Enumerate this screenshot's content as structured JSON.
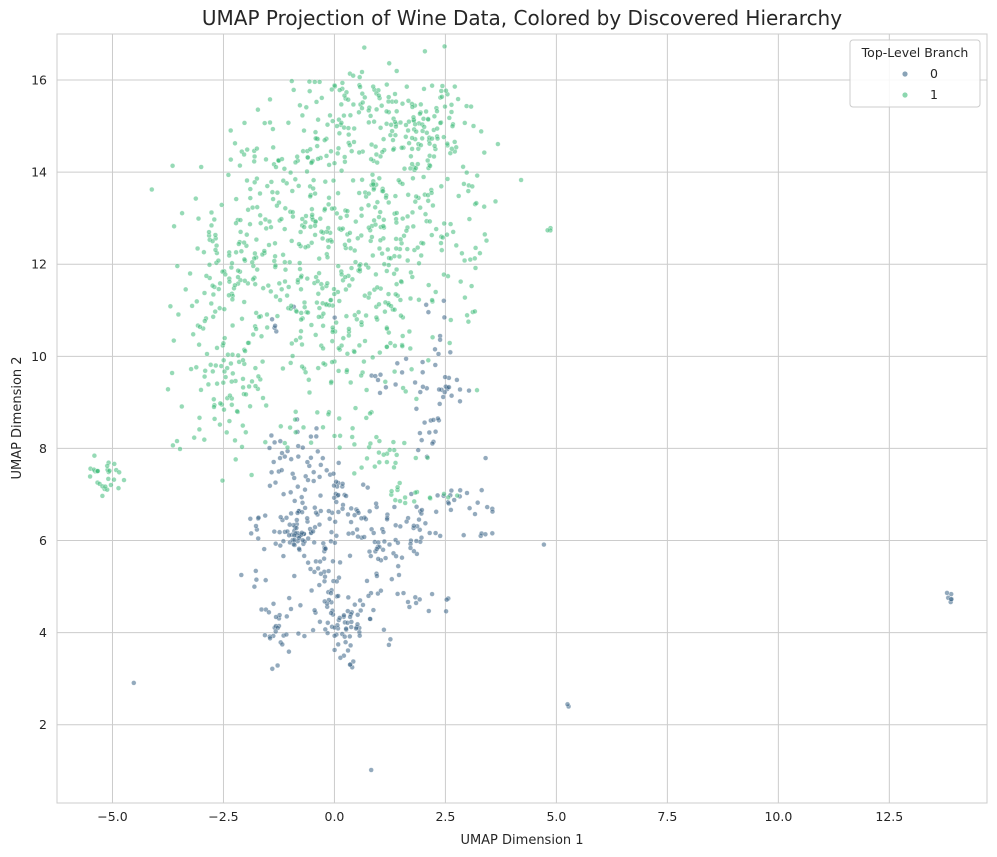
{
  "chart_data": {
    "type": "scatter",
    "title": "UMAP Projection of Wine Data, Colored by Discovered Hierarchy",
    "xlabel": "UMAP Dimension 1",
    "ylabel": "UMAP Dimension 2",
    "xlim": [
      -6.25,
      14.7
    ],
    "ylim": [
      0.3,
      17.0
    ],
    "xticks": [
      -5.0,
      -2.5,
      0.0,
      2.5,
      5.0,
      7.5,
      10.0,
      12.5
    ],
    "xtick_labels": [
      "−5.0",
      "−2.5",
      "0.0",
      "2.5",
      "5.0",
      "7.5",
      "10.0",
      "12.5"
    ],
    "yticks": [
      2,
      4,
      6,
      8,
      10,
      12,
      14,
      16
    ],
    "ytick_labels": [
      "2",
      "4",
      "6",
      "8",
      "10",
      "12",
      "14",
      "16"
    ],
    "grid": true,
    "legend": {
      "title": "Top-Level Branch",
      "position": "top-right",
      "entries": [
        "0",
        "1"
      ]
    },
    "series": [
      {
        "name": "0",
        "color": "#3b6587",
        "clusters": [
          {
            "cx": -0.8,
            "cy": 6.1,
            "sx": 0.25,
            "sy": 0.2,
            "n": 50
          },
          {
            "cx": -0.6,
            "cy": 7.4,
            "sx": 0.45,
            "sy": 0.5,
            "n": 45
          },
          {
            "cx": 0.5,
            "cy": 6.5,
            "sx": 0.5,
            "sy": 0.45,
            "n": 55
          },
          {
            "cx": 0.4,
            "cy": 4.4,
            "sx": 0.35,
            "sy": 0.35,
            "n": 45
          },
          {
            "cx": 0.2,
            "cy": 3.8,
            "sx": 0.2,
            "sy": 0.3,
            "n": 15
          },
          {
            "cx": -0.8,
            "cy": 5.0,
            "sx": 0.6,
            "sy": 0.6,
            "n": 35
          },
          {
            "cx": -1.3,
            "cy": 4.1,
            "sx": 0.15,
            "sy": 0.3,
            "n": 18
          },
          {
            "cx": 1.2,
            "cy": 5.6,
            "sx": 0.35,
            "sy": 0.5,
            "n": 30
          },
          {
            "cx": 1.9,
            "cy": 6.2,
            "sx": 0.4,
            "sy": 0.3,
            "n": 22
          },
          {
            "cx": -1.6,
            "cy": 6.2,
            "sx": 0.15,
            "sy": 0.3,
            "n": 12
          },
          {
            "cx": -1.2,
            "cy": 7.9,
            "sx": 0.35,
            "sy": 0.25,
            "n": 14
          },
          {
            "cx": 2.2,
            "cy": 8.3,
            "sx": 0.15,
            "sy": 0.25,
            "n": 14
          },
          {
            "cx": 2.7,
            "cy": 9.3,
            "sx": 0.15,
            "sy": 0.15,
            "n": 14
          },
          {
            "cx": 1.6,
            "cy": 9.5,
            "sx": 0.5,
            "sy": 0.25,
            "n": 18
          },
          {
            "cx": 2.7,
            "cy": 7.0,
            "sx": 0.25,
            "sy": 0.15,
            "n": 12
          },
          {
            "cx": 1.7,
            "cy": 4.9,
            "sx": 0.3,
            "sy": 0.3,
            "n": 10
          },
          {
            "cx": 2.4,
            "cy": 10.5,
            "sx": 0.2,
            "sy": 0.5,
            "n": 10
          },
          {
            "cx": -0.3,
            "cy": 5.6,
            "sx": 0.3,
            "sy": 0.4,
            "n": 15
          },
          {
            "cx": 3.3,
            "cy": 6.8,
            "sx": 0.2,
            "sy": 0.5,
            "n": 8
          },
          {
            "cx": 3.3,
            "cy": 6.1,
            "sx": 0.2,
            "sy": 0.1,
            "n": 4
          },
          {
            "cx": -1.1,
            "cy": 10.7,
            "sx": 0.5,
            "sy": 0.2,
            "n": 6
          },
          {
            "cx": 13.85,
            "cy": 4.75,
            "sx": 0.08,
            "sy": 0.06,
            "n": 6
          },
          {
            "cx": 5.25,
            "cy": 2.42,
            "sx": 0.03,
            "sy": 0.03,
            "n": 2
          },
          {
            "cx": 4.7,
            "cy": 5.95,
            "sx": 0.02,
            "sy": 0.02,
            "n": 1
          },
          {
            "cx": -4.5,
            "cy": 2.87,
            "sx": 0.02,
            "sy": 0.02,
            "n": 1
          },
          {
            "cx": 0.8,
            "cy": 1.05,
            "sx": 0.02,
            "sy": 0.02,
            "n": 1
          },
          {
            "cx": -1.4,
            "cy": 3.22,
            "sx": 0.02,
            "sy": 0.02,
            "n": 1
          },
          {
            "cx": 2.6,
            "cy": 4.6,
            "sx": 0.1,
            "sy": 0.1,
            "n": 3
          },
          {
            "cx": 0.4,
            "cy": 3.3,
            "sx": 0.05,
            "sy": 0.05,
            "n": 3
          }
        ]
      },
      {
        "name": "1",
        "color": "#3fbc7a",
        "clusters": [
          {
            "cx": 0.8,
            "cy": 14.8,
            "sx": 1.1,
            "sy": 0.75,
            "n": 180
          },
          {
            "cx": -0.8,
            "cy": 12.4,
            "sx": 1.2,
            "sy": 1.1,
            "n": 260
          },
          {
            "cx": 1.6,
            "cy": 12.7,
            "sx": 0.8,
            "sy": 0.8,
            "n": 110
          },
          {
            "cx": 0.6,
            "cy": 10.6,
            "sx": 0.9,
            "sy": 0.9,
            "n": 110
          },
          {
            "cx": -2.4,
            "cy": 9.5,
            "sx": 0.45,
            "sy": 0.8,
            "n": 80
          },
          {
            "cx": -2.6,
            "cy": 11.5,
            "sx": 0.4,
            "sy": 0.6,
            "n": 45
          },
          {
            "cx": 2.3,
            "cy": 15.0,
            "sx": 0.3,
            "sy": 0.5,
            "n": 40
          },
          {
            "cx": 0.5,
            "cy": 15.7,
            "sx": 0.5,
            "sy": 0.1,
            "n": 20
          },
          {
            "cx": -5.0,
            "cy": 7.5,
            "sx": 0.35,
            "sy": 0.2,
            "n": 22
          },
          {
            "cx": 3.0,
            "cy": 12.8,
            "sx": 0.25,
            "sy": 0.8,
            "n": 20
          },
          {
            "cx": 1.2,
            "cy": 7.8,
            "sx": 0.4,
            "sy": 0.25,
            "n": 20
          },
          {
            "cx": 1.6,
            "cy": 7.0,
            "sx": 0.2,
            "sy": 0.15,
            "n": 12
          },
          {
            "cx": -0.3,
            "cy": 8.6,
            "sx": 0.6,
            "sy": 0.4,
            "n": 30
          },
          {
            "cx": -1.7,
            "cy": 14.0,
            "sx": 0.4,
            "sy": 0.6,
            "n": 30
          },
          {
            "cx": 3.1,
            "cy": 10.9,
            "sx": 0.08,
            "sy": 0.1,
            "n": 4
          },
          {
            "cx": 4.85,
            "cy": 12.75,
            "sx": 0.03,
            "sy": 0.05,
            "n": 3
          },
          {
            "cx": 4.2,
            "cy": 13.85,
            "sx": 0.02,
            "sy": 0.02,
            "n": 1
          },
          {
            "cx": -3.5,
            "cy": 8.05,
            "sx": 0.1,
            "sy": 0.05,
            "n": 3
          },
          {
            "cx": 0.5,
            "cy": 16.15,
            "sx": 0.08,
            "sy": 0.06,
            "n": 4
          },
          {
            "cx": 2.5,
            "cy": 6.95,
            "sx": 0.3,
            "sy": 0.05,
            "n": 5
          },
          {
            "cx": -5.2,
            "cy": 7.1,
            "sx": 0.06,
            "sy": 0.1,
            "n": 6
          }
        ]
      }
    ]
  }
}
